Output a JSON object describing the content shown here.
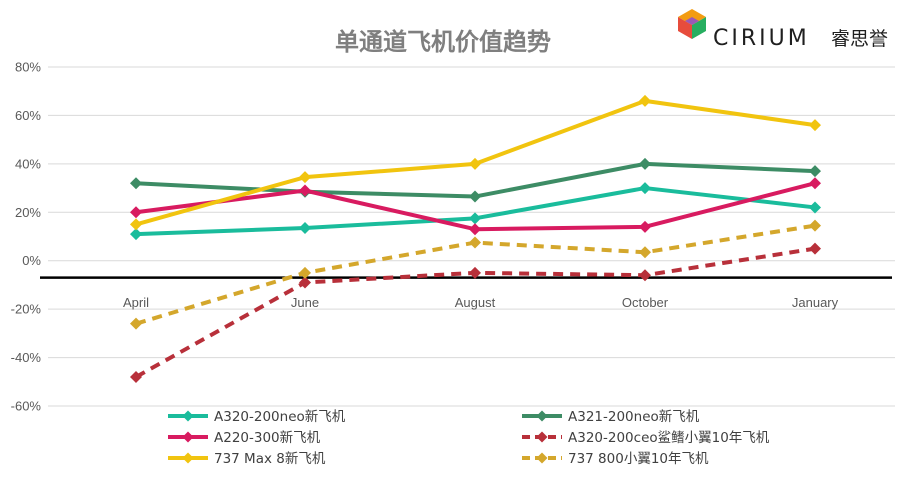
{
  "brand": {
    "name": "CIRIUM",
    "name_cn": "睿思誉"
  },
  "chart_data": {
    "type": "line",
    "title": "单通道飞机价值趋势",
    "categories": [
      "April",
      "June",
      "August",
      "October",
      "January"
    ],
    "ylim": [
      -60,
      80
    ],
    "y_ticks": [
      -60,
      -40,
      -20,
      0,
      20,
      40,
      60,
      80
    ],
    "y_tick_labels": [
      "-60%",
      "-40%",
      "-20%",
      "0%",
      "20%",
      "40%",
      "60%",
      "80%"
    ],
    "grid": true,
    "x_axis_baseline_value": -7,
    "legend_position": "bottom",
    "series": [
      {
        "name": "A320-200neo新飞机",
        "color": "#1abc9c",
        "dashed": false,
        "values": [
          11,
          13.5,
          17.5,
          30,
          22
        ]
      },
      {
        "name": "A321-200neo新飞机",
        "color": "#3d8c65",
        "dashed": false,
        "values": [
          32,
          28.5,
          26.5,
          40,
          37
        ]
      },
      {
        "name": "A220-300新飞机",
        "color": "#d81b60",
        "dashed": false,
        "values": [
          20,
          29,
          13,
          14,
          32
        ]
      },
      {
        "name": "A320-200ceo鲨鳍小翼10年飞机",
        "color": "#b8303a",
        "dashed": true,
        "values": [
          -48,
          -9,
          -5,
          -6,
          5
        ]
      },
      {
        "name": "737 Max 8新飞机",
        "color": "#f1c40f",
        "dashed": false,
        "values": [
          15,
          34.5,
          40,
          66,
          56
        ]
      },
      {
        "name": "737 800小翼10年飞机",
        "color": "#d4a72c",
        "dashed": true,
        "values": [
          -26,
          -5,
          7.5,
          3.5,
          14.5
        ]
      }
    ]
  }
}
